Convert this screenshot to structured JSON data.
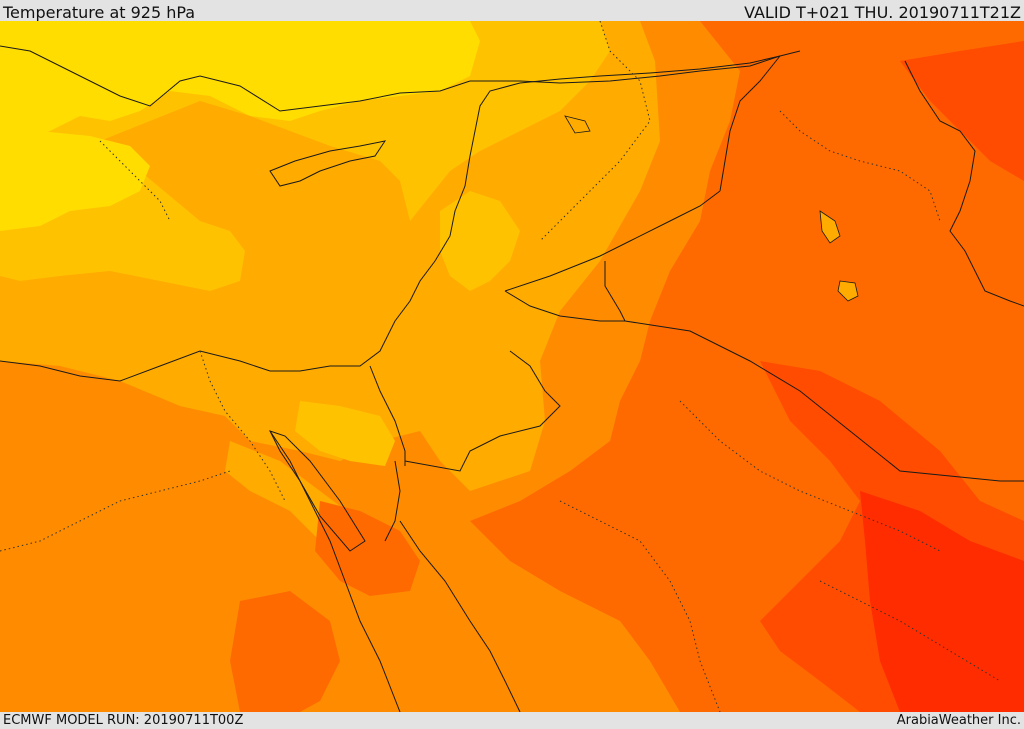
{
  "header": {
    "title": "Temperature at 925 hPa",
    "valid_time": "VALID T+021 THU. 20190711T21Z"
  },
  "footer": {
    "model_run": "ECMWF MODEL RUN: 20190711T00Z",
    "credit": "ArabiaWeather Inc."
  },
  "map": {
    "field": "Temperature at 925 hPa",
    "color_scale": [
      "#ffdd00",
      "#ffc200",
      "#ffab00",
      "#ff8c00",
      "#ff6a00",
      "#ff4c00",
      "#ff2c00"
    ]
  }
}
